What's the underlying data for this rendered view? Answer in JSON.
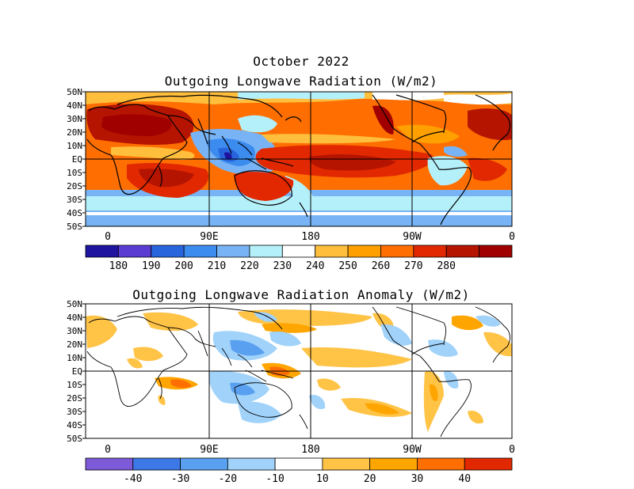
{
  "header": {
    "date_title": "October 2022",
    "map1_title": "Outgoing Longwave Radiation (W/m2)",
    "map2_title": "Outgoing Longwave Radiation Anomaly (W/m2)"
  },
  "lat_labels": [
    "50N",
    "40N",
    "30N",
    "20N",
    "10N",
    "EQ",
    "10S",
    "20S",
    "30S",
    "40S",
    "50S"
  ],
  "lon_labels": [
    "0",
    "90E",
    "180",
    "90W",
    "0"
  ],
  "colorbar1": {
    "colors": [
      "#1e14a0",
      "#5a3cd2",
      "#2864dc",
      "#3c8cf0",
      "#78b4f5",
      "#b4f0fa",
      "#ffffff",
      "#ffbe3c",
      "#ffa000",
      "#ff6e00",
      "#e12800",
      "#b41400",
      "#a00000"
    ],
    "labels": [
      "180",
      "190",
      "200",
      "210",
      "220",
      "230",
      "240",
      "250",
      "260",
      "270",
      "280"
    ]
  },
  "colorbar2": {
    "colors": [
      "#7d5ad7",
      "#3c78e6",
      "#5aa0f0",
      "#a0d2fa",
      "#ffffff",
      "#ffc346",
      "#ffa500",
      "#ff6e00",
      "#e12800"
    ],
    "labels": [
      "-40",
      "-30",
      "-20",
      "-10",
      "10",
      "20",
      "30",
      "40"
    ]
  }
}
